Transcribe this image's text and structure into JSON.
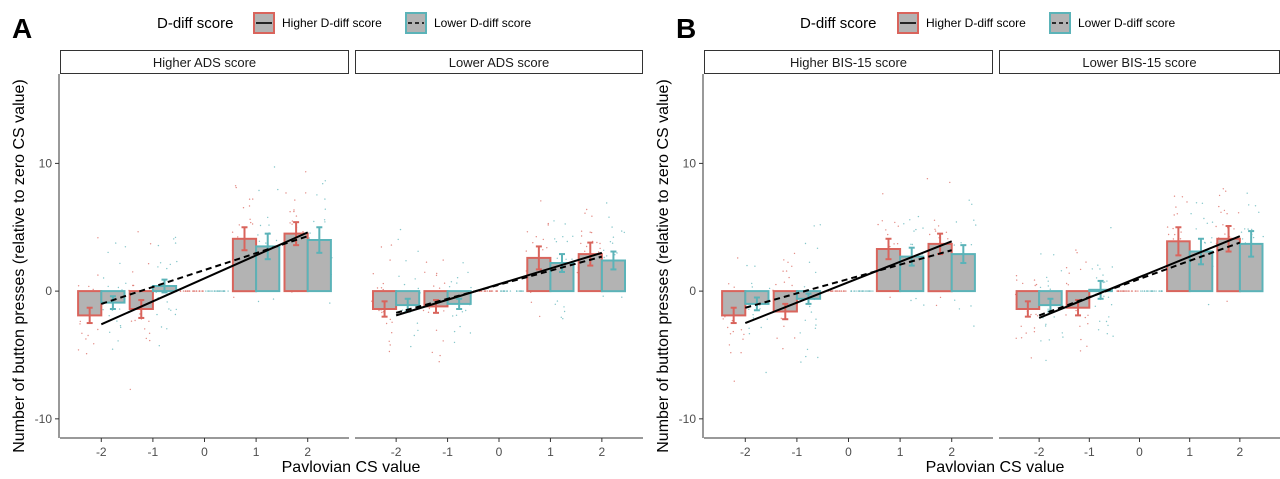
{
  "chart_data": [
    {
      "panel_letter": "A",
      "type": "bar",
      "legend": {
        "title": "D-diff score",
        "position": "top",
        "entries": [
          {
            "label": "Higher D-diff score",
            "color": "#d9645c",
            "linetype": "solid"
          },
          {
            "label": "Lower D-diff score",
            "color": "#5bb3b8",
            "linetype": "dashed"
          }
        ]
      },
      "xlabel": "Pavlovian CS value",
      "ylabel": "Number of button presses (relative to zero CS value)",
      "x_ticks": [
        "-2",
        "-1",
        "0",
        "1",
        "2"
      ],
      "y_ticks": [
        -10,
        0,
        10
      ],
      "ylim": [
        -11.5,
        17
      ],
      "facets": [
        {
          "strip": "Higher ADS score",
          "series": [
            {
              "name": "Higher D-diff score",
              "means": [
                -1.9,
                -1.4,
                0,
                4.1,
                4.5
              ],
              "errors": [
                0.6,
                0.7,
                0,
                0.9,
                0.9
              ]
            },
            {
              "name": "Lower D-diff score",
              "means": [
                -0.9,
                0.4,
                0,
                3.5,
                4.0
              ],
              "errors": [
                0.5,
                0.5,
                0,
                1.0,
                1.0
              ]
            }
          ],
          "fits": [
            {
              "name": "Higher D-diff score",
              "y_at_-2": -2.6,
              "y_at_2": 4.6
            },
            {
              "name": "Lower D-diff score",
              "y_at_-2": -1.0,
              "y_at_2": 4.3
            }
          ]
        },
        {
          "strip": "Lower ADS score",
          "series": [
            {
              "name": "Higher D-diff score",
              "means": [
                -1.4,
                -1.2,
                0,
                2.6,
                2.9
              ],
              "errors": [
                0.6,
                0.5,
                0,
                0.9,
                0.9
              ]
            },
            {
              "name": "Lower D-diff score",
              "means": [
                -1.1,
                -1.0,
                0,
                2.2,
                2.4
              ],
              "errors": [
                0.5,
                0.4,
                0,
                0.7,
                0.7
              ]
            }
          ],
          "fits": [
            {
              "name": "Higher D-diff score",
              "y_at_-2": -1.9,
              "y_at_2": 3.0
            },
            {
              "name": "Lower D-diff score",
              "y_at_-2": -1.7,
              "y_at_2": 2.7
            }
          ]
        }
      ]
    },
    {
      "panel_letter": "B",
      "type": "bar",
      "legend": {
        "title": "D-diff score",
        "position": "top",
        "entries": [
          {
            "label": "Higher D-diff score",
            "color": "#d9645c",
            "linetype": "solid"
          },
          {
            "label": "Lower D-diff score",
            "color": "#5bb3b8",
            "linetype": "dashed"
          }
        ]
      },
      "xlabel": "Pavlovian CS value",
      "ylabel": "Number of button presses (relative to zero CS value)",
      "x_ticks": [
        "-2",
        "-1",
        "0",
        "1",
        "2"
      ],
      "y_ticks": [
        -10,
        0,
        10
      ],
      "ylim": [
        -11.5,
        17
      ],
      "facets": [
        {
          "strip": "Higher BIS-15 score",
          "series": [
            {
              "name": "Higher D-diff score",
              "means": [
                -1.9,
                -1.6,
                0,
                3.3,
                3.7
              ],
              "errors": [
                0.6,
                0.6,
                0,
                0.8,
                0.8
              ]
            },
            {
              "name": "Lower D-diff score",
              "means": [
                -1.0,
                -0.6,
                0,
                2.7,
                2.9
              ],
              "errors": [
                0.5,
                0.4,
                0,
                0.7,
                0.7
              ]
            }
          ],
          "fits": [
            {
              "name": "Higher D-diff score",
              "y_at_-2": -2.5,
              "y_at_2": 3.9
            },
            {
              "name": "Lower D-diff score",
              "y_at_-2": -1.3,
              "y_at_2": 3.2
            }
          ]
        },
        {
          "strip": "Lower BIS-15 score",
          "series": [
            {
              "name": "Higher D-diff score",
              "means": [
                -1.4,
                -1.3,
                0,
                3.9,
                4.1
              ],
              "errors": [
                0.6,
                0.6,
                0,
                1.1,
                1.0
              ]
            },
            {
              "name": "Lower D-diff score",
              "means": [
                -1.1,
                0.1,
                0,
                3.1,
                3.7
              ],
              "errors": [
                0.5,
                0.7,
                0,
                1.0,
                1.0
              ]
            }
          ],
          "fits": [
            {
              "name": "Higher D-diff score",
              "y_at_-2": -2.1,
              "y_at_2": 4.3
            },
            {
              "name": "Lower D-diff score",
              "y_at_-2": -1.9,
              "y_at_2": 3.8
            }
          ]
        }
      ]
    }
  ],
  "colors": {
    "bar_fill": "#b3b3b3",
    "higher_outline": "#d9645c",
    "lower_outline": "#5bb3b8",
    "fit_line": "#000000",
    "grid": "none"
  }
}
